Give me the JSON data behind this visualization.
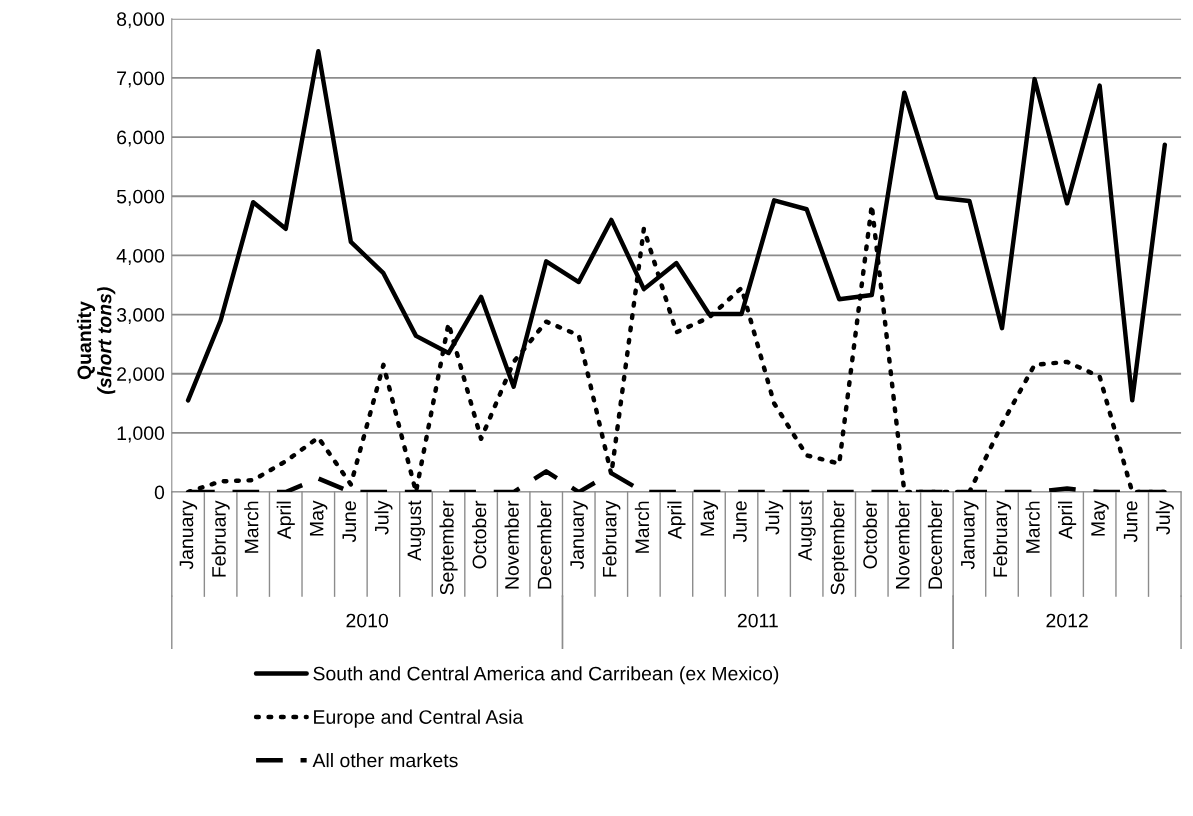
{
  "chart_data": {
    "type": "line",
    "ylabel": "Quantity\n(short tons)",
    "categories": [
      "January",
      "February",
      "March",
      "April",
      "May",
      "June",
      "July",
      "August",
      "September",
      "October",
      "November",
      "December",
      "January",
      "February",
      "March",
      "April",
      "May",
      "June",
      "July",
      "August",
      "September",
      "October",
      "November",
      "December",
      "January",
      "February",
      "March",
      "April",
      "May",
      "June",
      "July"
    ],
    "series": [
      {
        "name": "South and Central America and Carribean (ex Mexico)",
        "color": "#000000",
        "line_style": "solid",
        "values": [
          1550,
          2900,
          4900,
          4450,
          7450,
          4230,
          3700,
          2640,
          2350,
          3300,
          1780,
          3900,
          3550,
          4600,
          3430,
          3870,
          3010,
          3010,
          4930,
          4780,
          3260,
          3330,
          6750,
          4980,
          4920,
          2770,
          6980,
          4880,
          6870,
          1550,
          5870
        ]
      },
      {
        "name": "Europe and Central Asia",
        "color": "#000000",
        "line_style": "dotted",
        "values": [
          0,
          180,
          200,
          520,
          920,
          130,
          2150,
          0,
          2850,
          900,
          2200,
          2880,
          2650,
          300,
          4450,
          2700,
          2950,
          3450,
          1500,
          620,
          480,
          4850,
          0,
          0,
          0,
          1150,
          2150,
          2200,
          1950,
          0,
          0
        ]
      },
      {
        "name": "All other markets",
        "color": "#000000",
        "line_style": "dashed",
        "values": [
          0,
          0,
          0,
          0,
          230,
          0,
          0,
          0,
          0,
          0,
          0,
          350,
          0,
          320,
          0,
          0,
          0,
          0,
          0,
          0,
          0,
          0,
          0,
          0,
          0,
          0,
          0,
          60,
          0,
          0,
          0
        ]
      }
    ],
    "annotations": [
      "2010",
      "2011",
      "2012"
    ],
    "ylim": [
      0,
      8000
    ],
    "yticks": [
      {
        "value": 0,
        "label": "0"
      },
      {
        "value": 1000,
        "label": "1,000"
      },
      {
        "value": 2000,
        "label": "2,000"
      },
      {
        "value": 3000,
        "label": "3,000"
      },
      {
        "value": 4000,
        "label": "4,000"
      },
      {
        "value": 5000,
        "label": "5,000"
      },
      {
        "value": 6000,
        "label": "6,000"
      },
      {
        "value": 7000,
        "label": "7,000"
      },
      {
        "value": 8000,
        "label": "8,000"
      }
    ],
    "grid": "y",
    "legend": "bottom"
  }
}
